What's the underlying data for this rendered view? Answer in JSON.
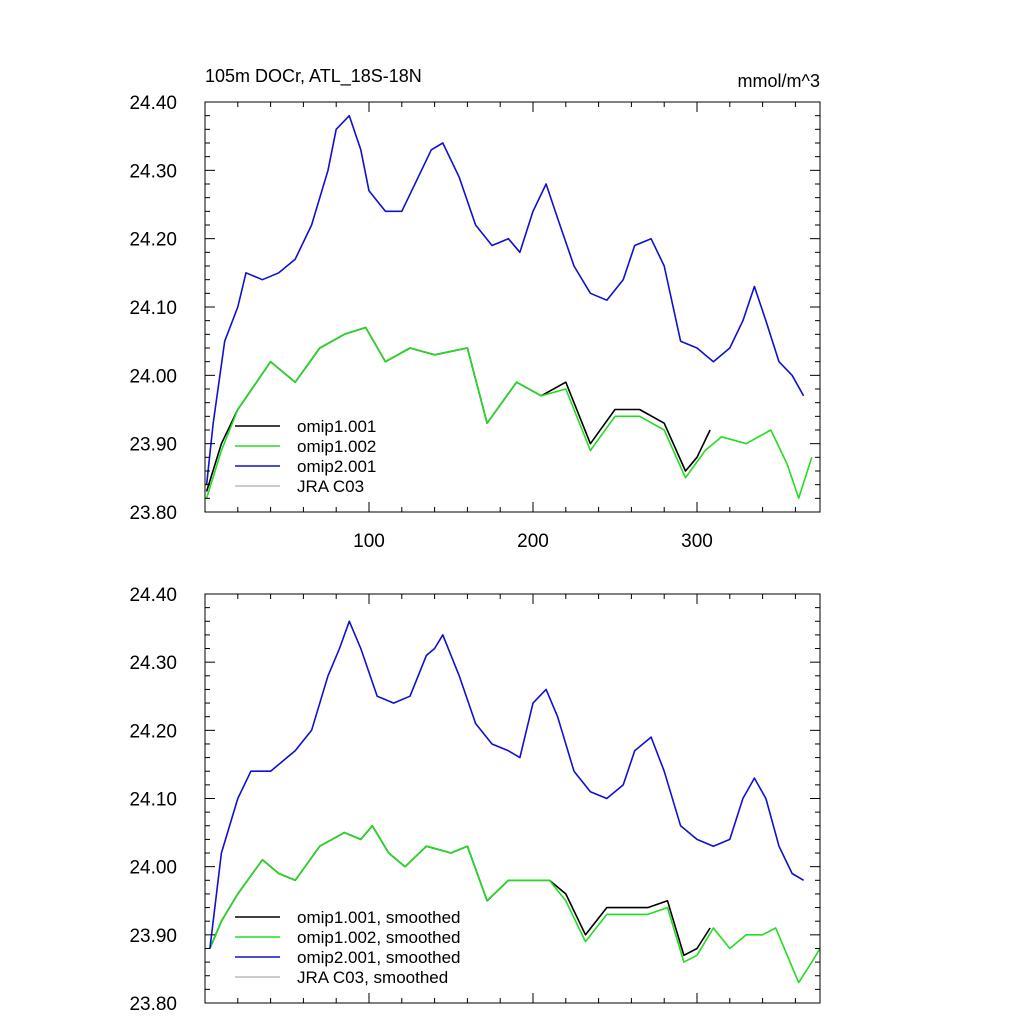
{
  "header": {
    "title": "105m DOCr, ATL_18S-18N",
    "units": "mmol/m^3"
  },
  "colors": {
    "omip1_001": "#000000",
    "omip1_002": "#22dd22",
    "omip2_001": "#1010d0",
    "jra_c03": "#bbbbbb"
  },
  "chart_data": [
    {
      "type": "line",
      "panel": "top",
      "xlim": [
        0,
        375
      ],
      "ylim": [
        23.8,
        24.4
      ],
      "x_ticks": [
        "100",
        "200",
        "300"
      ],
      "y_ticks": [
        "24.40",
        "24.30",
        "24.20",
        "24.10",
        "24.00",
        "23.90",
        "23.80"
      ],
      "legend_position": "lower-left",
      "series": [
        {
          "name": "omip1.001",
          "color_key": "omip1_001",
          "points": [
            [
              1,
              23.83
            ],
            [
              10,
              23.9
            ],
            [
              20,
              23.95
            ],
            [
              40,
              24.02
            ],
            [
              55,
              23.99
            ],
            [
              70,
              24.04
            ],
            [
              85,
              24.06
            ],
            [
              98,
              24.07
            ],
            [
              110,
              24.02
            ],
            [
              125,
              24.04
            ],
            [
              140,
              24.03
            ],
            [
              160,
              24.04
            ],
            [
              172,
              23.93
            ],
            [
              190,
              23.99
            ],
            [
              205,
              23.97
            ],
            [
              220,
              23.99
            ],
            [
              235,
              23.9
            ],
            [
              250,
              23.95
            ],
            [
              265,
              23.95
            ],
            [
              280,
              23.93
            ],
            [
              293,
              23.86
            ],
            [
              300,
              23.88
            ],
            [
              308,
              23.92
            ]
          ]
        },
        {
          "name": "omip1.002",
          "color_key": "omip1_002",
          "points": [
            [
              1,
              23.82
            ],
            [
              10,
              23.89
            ],
            [
              20,
              23.95
            ],
            [
              40,
              24.02
            ],
            [
              55,
              23.99
            ],
            [
              70,
              24.04
            ],
            [
              85,
              24.06
            ],
            [
              98,
              24.07
            ],
            [
              110,
              24.02
            ],
            [
              125,
              24.04
            ],
            [
              140,
              24.03
            ],
            [
              160,
              24.04
            ],
            [
              172,
              23.93
            ],
            [
              190,
              23.99
            ],
            [
              205,
              23.97
            ],
            [
              220,
              23.98
            ],
            [
              235,
              23.89
            ],
            [
              250,
              23.94
            ],
            [
              265,
              23.94
            ],
            [
              280,
              23.92
            ],
            [
              293,
              23.85
            ],
            [
              305,
              23.89
            ],
            [
              315,
              23.91
            ],
            [
              330,
              23.9
            ],
            [
              345,
              23.92
            ],
            [
              355,
              23.87
            ],
            [
              362,
              23.82
            ],
            [
              370,
              23.88
            ]
          ]
        },
        {
          "name": "omip2.001",
          "color_key": "omip2_001",
          "points": [
            [
              1,
              23.84
            ],
            [
              5,
              23.93
            ],
            [
              12,
              24.05
            ],
            [
              20,
              24.1
            ],
            [
              25,
              24.15
            ],
            [
              35,
              24.14
            ],
            [
              45,
              24.15
            ],
            [
              55,
              24.17
            ],
            [
              65,
              24.22
            ],
            [
              75,
              24.3
            ],
            [
              80,
              24.36
            ],
            [
              88,
              24.38
            ],
            [
              95,
              24.33
            ],
            [
              100,
              24.27
            ],
            [
              110,
              24.24
            ],
            [
              120,
              24.24
            ],
            [
              130,
              24.29
            ],
            [
              138,
              24.33
            ],
            [
              145,
              24.34
            ],
            [
              155,
              24.29
            ],
            [
              165,
              24.22
            ],
            [
              175,
              24.19
            ],
            [
              185,
              24.2
            ],
            [
              192,
              24.18
            ],
            [
              200,
              24.24
            ],
            [
              208,
              24.28
            ],
            [
              215,
              24.23
            ],
            [
              225,
              24.16
            ],
            [
              235,
              24.12
            ],
            [
              245,
              24.11
            ],
            [
              255,
              24.14
            ],
            [
              262,
              24.19
            ],
            [
              272,
              24.2
            ],
            [
              280,
              24.16
            ],
            [
              290,
              24.05
            ],
            [
              300,
              24.04
            ],
            [
              310,
              24.02
            ],
            [
              320,
              24.04
            ],
            [
              328,
              24.08
            ],
            [
              335,
              24.13
            ],
            [
              342,
              24.08
            ],
            [
              350,
              24.02
            ],
            [
              358,
              24.0
            ],
            [
              365,
              23.97
            ]
          ]
        },
        {
          "name": "JRA C03",
          "color_key": "jra_c03",
          "points": []
        }
      ]
    },
    {
      "type": "line",
      "panel": "bottom",
      "xlim": [
        0,
        375
      ],
      "ylim": [
        23.8,
        24.4
      ],
      "y_ticks": [
        "24.40",
        "24.30",
        "24.20",
        "24.10",
        "24.00",
        "23.90",
        "23.80"
      ],
      "legend_position": "lower-left",
      "series": [
        {
          "name": "omip1.001, smoothed",
          "color_key": "omip1_001",
          "points": [
            [
              3,
              23.88
            ],
            [
              10,
              23.92
            ],
            [
              20,
              23.96
            ],
            [
              35,
              24.01
            ],
            [
              45,
              23.99
            ],
            [
              55,
              23.98
            ],
            [
              70,
              24.03
            ],
            [
              85,
              24.05
            ],
            [
              95,
              24.04
            ],
            [
              102,
              24.06
            ],
            [
              112,
              24.02
            ],
            [
              122,
              24.0
            ],
            [
              135,
              24.03
            ],
            [
              150,
              24.02
            ],
            [
              160,
              24.03
            ],
            [
              172,
              23.95
            ],
            [
              185,
              23.98
            ],
            [
              200,
              23.98
            ],
            [
              210,
              23.98
            ],
            [
              220,
              23.96
            ],
            [
              232,
              23.9
            ],
            [
              245,
              23.94
            ],
            [
              260,
              23.94
            ],
            [
              270,
              23.94
            ],
            [
              282,
              23.95
            ],
            [
              292,
              23.87
            ],
            [
              300,
              23.88
            ],
            [
              308,
              23.91
            ]
          ]
        },
        {
          "name": "omip1.002, smoothed",
          "color_key": "omip1_002",
          "points": [
            [
              3,
              23.88
            ],
            [
              10,
              23.92
            ],
            [
              20,
              23.96
            ],
            [
              35,
              24.01
            ],
            [
              45,
              23.99
            ],
            [
              55,
              23.98
            ],
            [
              70,
              24.03
            ],
            [
              85,
              24.05
            ],
            [
              95,
              24.04
            ],
            [
              102,
              24.06
            ],
            [
              112,
              24.02
            ],
            [
              122,
              24.0
            ],
            [
              135,
              24.03
            ],
            [
              150,
              24.02
            ],
            [
              160,
              24.03
            ],
            [
              172,
              23.95
            ],
            [
              185,
              23.98
            ],
            [
              200,
              23.98
            ],
            [
              210,
              23.98
            ],
            [
              220,
              23.95
            ],
            [
              232,
              23.89
            ],
            [
              245,
              23.93
            ],
            [
              260,
              23.93
            ],
            [
              270,
              23.93
            ],
            [
              282,
              23.94
            ],
            [
              292,
              23.86
            ],
            [
              300,
              23.87
            ],
            [
              310,
              23.91
            ],
            [
              320,
              23.88
            ],
            [
              330,
              23.9
            ],
            [
              340,
              23.9
            ],
            [
              348,
              23.91
            ],
            [
              355,
              23.87
            ],
            [
              362,
              23.83
            ],
            [
              370,
              23.86
            ],
            [
              375,
              23.88
            ]
          ]
        },
        {
          "name": "omip2.001, smoothed",
          "color_key": "omip2_001",
          "points": [
            [
              3,
              23.88
            ],
            [
              10,
              24.02
            ],
            [
              20,
              24.1
            ],
            [
              28,
              24.14
            ],
            [
              40,
              24.14
            ],
            [
              55,
              24.17
            ],
            [
              65,
              24.2
            ],
            [
              75,
              24.28
            ],
            [
              82,
              24.32
            ],
            [
              88,
              24.36
            ],
            [
              95,
              24.32
            ],
            [
              105,
              24.25
            ],
            [
              115,
              24.24
            ],
            [
              125,
              24.25
            ],
            [
              135,
              24.31
            ],
            [
              140,
              24.32
            ],
            [
              145,
              24.34
            ],
            [
              155,
              24.28
            ],
            [
              165,
              24.21
            ],
            [
              175,
              24.18
            ],
            [
              185,
              24.17
            ],
            [
              192,
              24.16
            ],
            [
              200,
              24.24
            ],
            [
              208,
              24.26
            ],
            [
              215,
              24.22
            ],
            [
              225,
              24.14
            ],
            [
              235,
              24.11
            ],
            [
              245,
              24.1
            ],
            [
              255,
              24.12
            ],
            [
              262,
              24.17
            ],
            [
              272,
              24.19
            ],
            [
              280,
              24.14
            ],
            [
              290,
              24.06
            ],
            [
              300,
              24.04
            ],
            [
              310,
              24.03
            ],
            [
              320,
              24.04
            ],
            [
              328,
              24.1
            ],
            [
              335,
              24.13
            ],
            [
              342,
              24.1
            ],
            [
              350,
              24.03
            ],
            [
              358,
              23.99
            ],
            [
              365,
              23.98
            ]
          ]
        },
        {
          "name": "JRA C03, smoothed",
          "color_key": "jra_c03",
          "points": []
        }
      ]
    }
  ]
}
